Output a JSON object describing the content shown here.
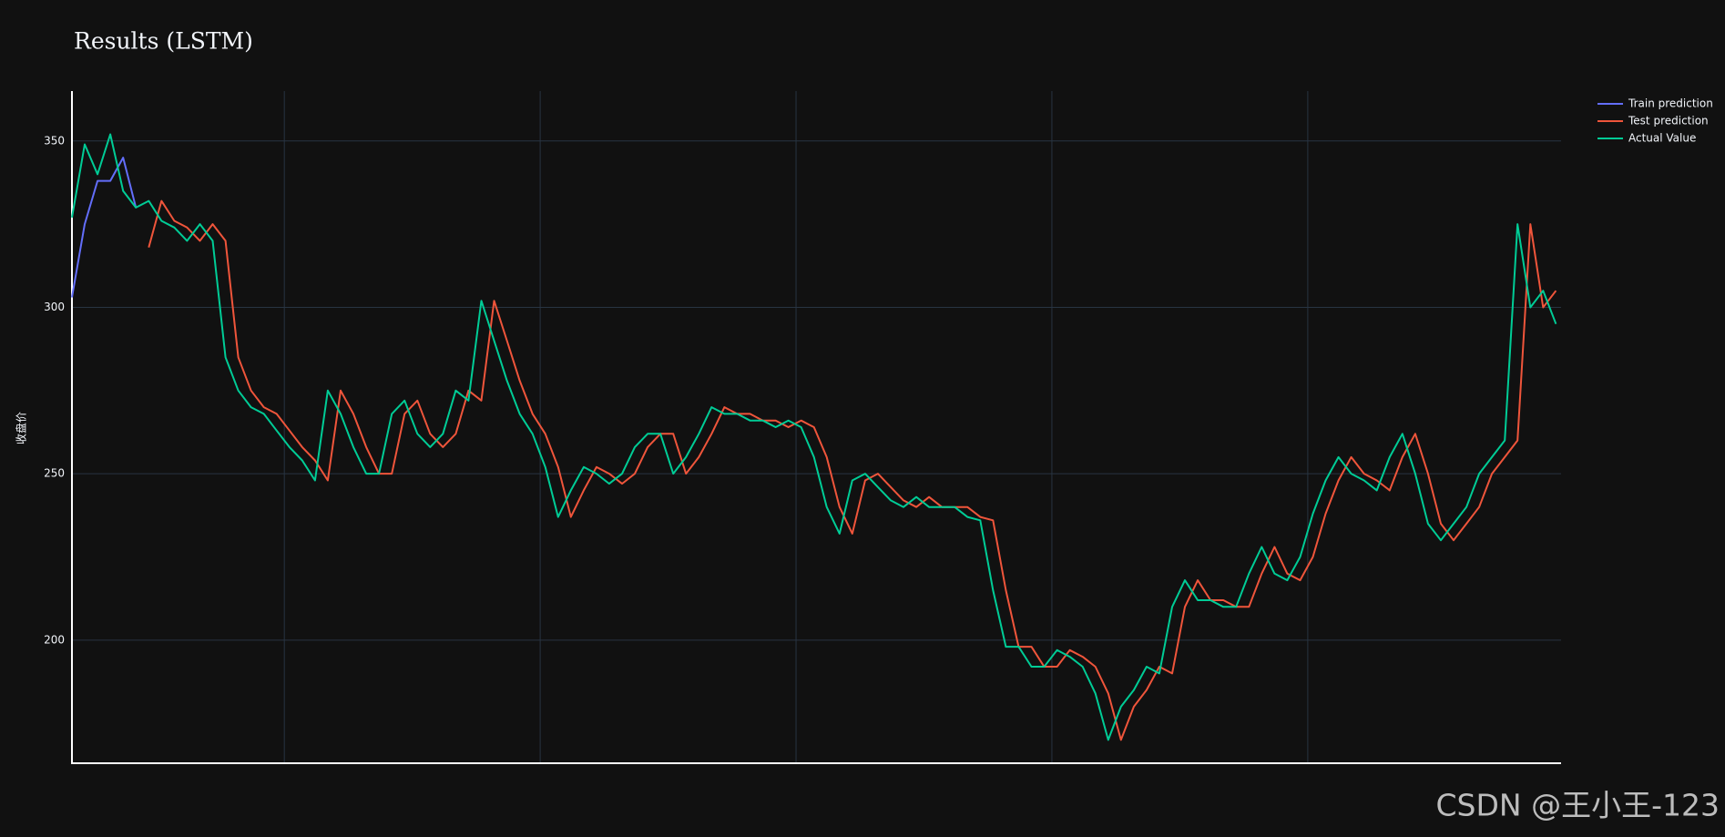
{
  "chart_data": {
    "type": "line",
    "title": "Results (LSTM)",
    "y_label": "收盘价",
    "watermark": "CSDN @王小王-123",
    "x": [
      17,
      22,
      27,
      32,
      37,
      42,
      47,
      52,
      57,
      62,
      67,
      72,
      77,
      82,
      87,
      92,
      97,
      102,
      107,
      112,
      117,
      122,
      127,
      132,
      137,
      142,
      147,
      152,
      157,
      162,
      167,
      172,
      177,
      182,
      187,
      192,
      197,
      202,
      207,
      212,
      217,
      222,
      227,
      232,
      237,
      242,
      247,
      252,
      257,
      262,
      267,
      272,
      277,
      282,
      287,
      292,
      297,
      302,
      307,
      312,
      317,
      322,
      327,
      332,
      337,
      342,
      347,
      352,
      357,
      362,
      367,
      372,
      377,
      382,
      387,
      392,
      397,
      402,
      407,
      412,
      417,
      422,
      427,
      432,
      437,
      442,
      447,
      452,
      457,
      462,
      467,
      472,
      477,
      482,
      487,
      492,
      497,
      502,
      507,
      512,
      517,
      522,
      527,
      532,
      537,
      542,
      547,
      552,
      557,
      562,
      567,
      572,
      577,
      582,
      587,
      592,
      597
    ],
    "xlim": [
      17,
      599
    ],
    "xticks": [
      100,
      200,
      300,
      400,
      500
    ],
    "ylim": [
      163,
      365
    ],
    "yticks": [
      200,
      250,
      300,
      350
    ],
    "grid": true,
    "legend_position": "top-right",
    "series": [
      {
        "name": "Train prediction",
        "color": "#636efa",
        "values": [
          303,
          325,
          338,
          338,
          345,
          330,
          null,
          null,
          null,
          null,
          null,
          null,
          null,
          null,
          null,
          null,
          null,
          null,
          null,
          null,
          null,
          null,
          null,
          null,
          null,
          null,
          null,
          null,
          null,
          null,
          null,
          null,
          null,
          null,
          null,
          null,
          null,
          null,
          null,
          null,
          null,
          null,
          null,
          null,
          null,
          null,
          null,
          null,
          null,
          null,
          null,
          null,
          null,
          null,
          null,
          null,
          null,
          null,
          null,
          null,
          null,
          null,
          null,
          null,
          null,
          null,
          null,
          null,
          null,
          null,
          null,
          null,
          null,
          null,
          null,
          null,
          null,
          null,
          null,
          null,
          null,
          null,
          null,
          null,
          null,
          null,
          null,
          null,
          null,
          null,
          null,
          null,
          null,
          null,
          null,
          null,
          null,
          null,
          null,
          null,
          null,
          null,
          null,
          null,
          null,
          null,
          null,
          null,
          null,
          null,
          null,
          null,
          null,
          null,
          null,
          null,
          null
        ]
      },
      {
        "name": "Test prediction",
        "color": "#ef553b",
        "values": [
          null,
          null,
          null,
          null,
          null,
          null,
          318,
          332,
          326,
          324,
          320,
          325,
          320,
          285,
          275,
          270,
          268,
          263,
          258,
          254,
          248,
          275,
          268,
          258,
          250,
          250,
          268,
          272,
          262,
          258,
          262,
          275,
          272,
          302,
          290,
          278,
          268,
          262,
          252,
          237,
          245,
          252,
          250,
          247,
          250,
          258,
          262,
          262,
          250,
          255,
          262,
          270,
          268,
          268,
          266,
          266,
          264,
          266,
          264,
          255,
          240,
          232,
          248,
          250,
          246,
          242,
          240,
          243,
          240,
          240,
          240,
          237,
          236,
          215,
          198,
          198,
          192,
          192,
          197,
          195,
          192,
          184,
          170,
          180,
          185,
          192,
          190,
          210,
          218,
          212,
          212,
          210,
          210,
          220,
          228,
          220,
          218,
          225,
          238,
          248,
          255,
          250,
          248,
          245,
          255,
          262,
          250,
          235,
          230,
          235,
          240,
          250,
          255,
          260,
          325,
          300,
          305
        ]
      },
      {
        "name": "Actual Value",
        "color": "#00cc96",
        "values": [
          327,
          349,
          340,
          352,
          335,
          330,
          332,
          326,
          324,
          320,
          325,
          320,
          285,
          275,
          270,
          268,
          263,
          258,
          254,
          248,
          275,
          268,
          258,
          250,
          250,
          268,
          272,
          262,
          258,
          262,
          275,
          272,
          302,
          290,
          278,
          268,
          262,
          252,
          237,
          245,
          252,
          250,
          247,
          250,
          258,
          262,
          262,
          250,
          255,
          262,
          270,
          268,
          268,
          266,
          266,
          264,
          266,
          264,
          255,
          240,
          232,
          248,
          250,
          246,
          242,
          240,
          243,
          240,
          240,
          240,
          237,
          236,
          215,
          198,
          198,
          192,
          192,
          197,
          195,
          192,
          184,
          170,
          180,
          185,
          192,
          190,
          210,
          218,
          212,
          212,
          210,
          210,
          220,
          228,
          220,
          218,
          225,
          238,
          248,
          255,
          250,
          248,
          245,
          255,
          262,
          250,
          235,
          230,
          235,
          240,
          250,
          255,
          260,
          325,
          300,
          305,
          295
        ]
      }
    ]
  }
}
